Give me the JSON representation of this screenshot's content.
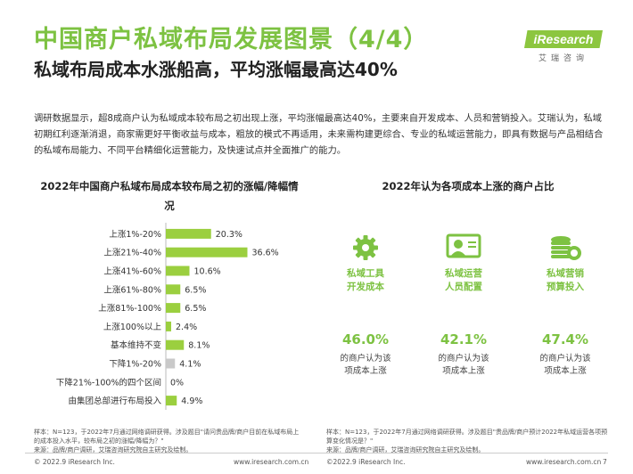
{
  "header": {
    "title": "中国商户私域布局发展图景（4/4）",
    "subtitle": "私域布局成本水涨船高，平均涨幅最高达40%",
    "logo_text": "iResearch",
    "logo_cn": "艾瑞咨询"
  },
  "description": "调研数据显示，超8成商户认为私域成本较布局之初出现上涨，平均涨幅最高达40%，主要来自开发成本、人员和营销投入。艾瑞认为，私域初期红利逐渐消退，商家需更好平衡收益与成本，粗放的模式不再适用，未来需构建更综合、专业的私域运营能力，即具有数据与产品相结合的私域布局能力、不同平台精细化运营能力，及快速试点并全面推广的能力。",
  "chart_data": [
    {
      "type": "bar",
      "orientation": "horizontal",
      "title": "2022年中国商户私域布局成本较布局之初的涨幅/降幅情况",
      "categories": [
        "上涨1%-20%",
        "上涨21%-40%",
        "上涨41%-60%",
        "上涨61%-80%",
        "上涨81%-100%",
        "上涨100%以上",
        "基本维持不变",
        "下降1%-20%",
        "下降21%-100%的四个区间",
        "由集团总部进行布局投入"
      ],
      "values": [
        20.3,
        36.6,
        10.6,
        6.5,
        6.5,
        2.4,
        8.1,
        4.1,
        0,
        4.9
      ],
      "labels": [
        "20.3%",
        "36.6%",
        "10.6%",
        "6.5%",
        "6.5%",
        "2.4%",
        "8.1%",
        "4.1%",
        "0%",
        "4.9%"
      ],
      "bar_colors": [
        "#9bcf3f",
        "#9bcf3f",
        "#9bcf3f",
        "#9bcf3f",
        "#9bcf3f",
        "#9bcf3f",
        "#9bcf3f",
        "#c9c9c9",
        "#c9c9c9",
        "#9bcf3f"
      ],
      "xlim": [
        0,
        40
      ]
    },
    {
      "type": "table",
      "title": "2022年认为各项成本上涨的商户占比",
      "items": [
        {
          "icon": "gear-icon",
          "label_line1": "私域工具",
          "label_line2": "开发成本",
          "value": "46.0%",
          "text_line1": "的商户认为该",
          "text_line2": "项成本上涨"
        },
        {
          "icon": "operator-person-icon",
          "label_line1": "私域运营",
          "label_line2": "人员配置",
          "value": "42.1%",
          "text_line1": "的商户认为该",
          "text_line2": "项成本上涨"
        },
        {
          "icon": "coins-stack-icon",
          "label_line1": "私域营销",
          "label_line2": "预算投入",
          "value": "47.4%",
          "text_line1": "的商户认为该",
          "text_line2": "项成本上涨"
        }
      ]
    }
  ],
  "notes": {
    "left": "样本：N=123，于2022年7月通过网络调研获得。涉及题目\"请问贵品牌/商户目前在私域布局上的成本投入水平，较布局之初的涨幅/降幅为？\"",
    "left_source": "来源：品牌/商户调研，艾瑞咨询研究院自主研究及绘制。",
    "right": "样本：N=123，于2022年7月通过网络调研获得。涉及题目\"贵品牌/商户预计2022年私域运营各项预算变化情况是？\"",
    "right_source": "来源：品牌/商户调研，艾瑞咨询研究院自主研究及绘制。"
  },
  "footer": {
    "copyright_left": "© 2022.9 iResearch Inc.",
    "url_left": "www.iresearch.com.cn",
    "copyright_right": "©2022.9 iResearch Inc.",
    "url_right": "www.iresearch.com.cn",
    "page_number": "7"
  },
  "colors": {
    "accent": "#7dc242",
    "bar": "#9bcf3f",
    "bar_muted": "#c9c9c9"
  }
}
